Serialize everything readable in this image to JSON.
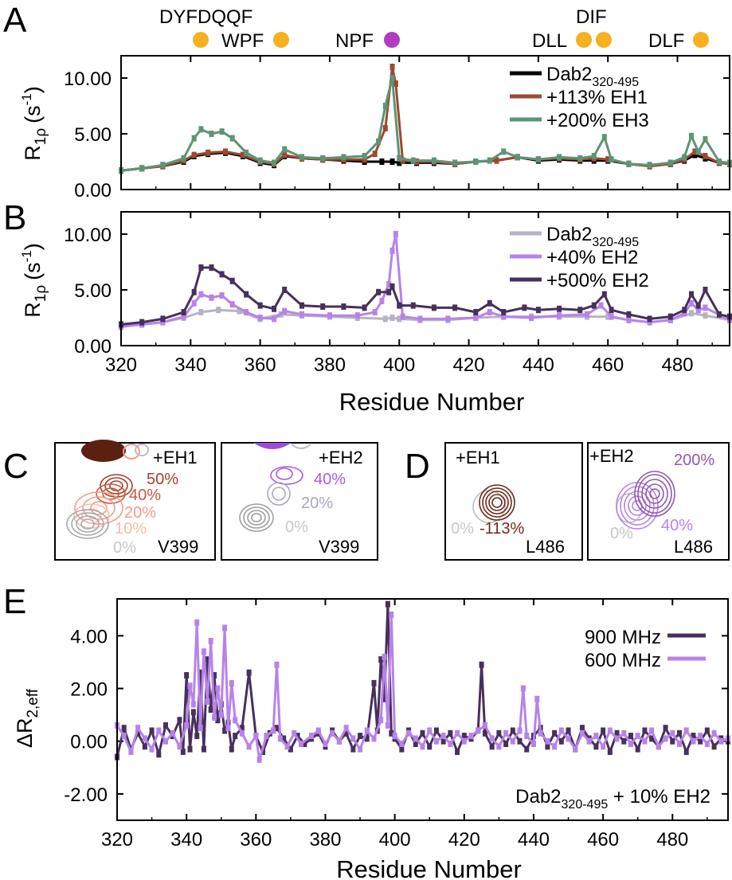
{
  "panels": {
    "A": {
      "letter": "A"
    },
    "B": {
      "letter": "B"
    },
    "C": {
      "letter": "C"
    },
    "D": {
      "letter": "D"
    },
    "E": {
      "letter": "E"
    }
  },
  "motifs": {
    "labels": [
      "DYFDQQF",
      "WPF",
      "NPF",
      "DLL",
      "DIF",
      "DLF"
    ],
    "colors": {
      "orange": "#F7B11F",
      "purple": "#B03CC0"
    }
  },
  "common": {
    "xlabel": "Residue Number",
    "xticks": [
      "320",
      "340",
      "360",
      "380",
      "400",
      "420",
      "440",
      "460",
      "480"
    ]
  },
  "ylabels": {
    "rho": {
      "main": "R",
      "sub": "1ρ",
      "unit": "(s",
      "exp": "-1",
      "close": ")"
    },
    "dr": {
      "main": "ΔR",
      "sub": "2,eff"
    }
  },
  "construct": {
    "name": "Dab2",
    "range": "320-495"
  },
  "chart_data": [
    {
      "panel": "A",
      "type": "line",
      "xlabel": "Residue Number",
      "ylabel": "R1ρ (s-1)",
      "xlim": [
        320,
        495
      ],
      "ylim": [
        0,
        12
      ],
      "yticks": [
        "0.00",
        "5.00",
        "10.00"
      ],
      "series": [
        {
          "name": "Dab2 320-495",
          "legend_suffix": "",
          "color": "#000000",
          "x": [
            320,
            326,
            332,
            338,
            341,
            345,
            350,
            355,
            360,
            364,
            367,
            372,
            378,
            384,
            390,
            395,
            398,
            400,
            405,
            410,
            416,
            422,
            428,
            434,
            440,
            446,
            452,
            456,
            460,
            466,
            472,
            478,
            482,
            485,
            488,
            492,
            495
          ],
          "y": [
            1.7,
            1.9,
            2.1,
            2.5,
            3.0,
            3.2,
            3.3,
            3.0,
            2.4,
            2.2,
            3.0,
            2.8,
            2.7,
            2.6,
            2.5,
            2.5,
            2.5,
            2.4,
            2.4,
            2.4,
            2.3,
            2.5,
            2.6,
            2.9,
            2.6,
            2.7,
            2.6,
            2.6,
            2.6,
            2.3,
            2.1,
            2.3,
            2.6,
            3.1,
            2.8,
            2.4,
            2.3
          ]
        },
        {
          "name": "+113% EH1",
          "legend_suffix": "",
          "color": "#9A4A33",
          "x": [
            320,
            326,
            332,
            338,
            341,
            345,
            350,
            355,
            360,
            364,
            367,
            372,
            378,
            384,
            390,
            393,
            396,
            398,
            399,
            401,
            405,
            410,
            416,
            422,
            428,
            434,
            440,
            446,
            452,
            456,
            460,
            466,
            472,
            478,
            482,
            485,
            488,
            492,
            495
          ],
          "y": [
            1.7,
            1.9,
            2.1,
            2.6,
            3.1,
            3.3,
            3.4,
            3.1,
            2.5,
            2.3,
            3.1,
            2.8,
            2.7,
            2.7,
            2.7,
            3.2,
            5.5,
            11.0,
            9.5,
            2.6,
            2.5,
            2.5,
            2.3,
            2.5,
            2.6,
            2.9,
            2.7,
            2.8,
            2.7,
            2.8,
            2.7,
            2.3,
            2.1,
            2.3,
            2.7,
            3.4,
            3.0,
            2.4,
            2.3
          ]
        },
        {
          "name": "+200% EH3",
          "legend_suffix": "",
          "color": "#5E9476",
          "x": [
            320,
            326,
            332,
            338,
            341,
            343,
            346,
            349,
            352,
            356,
            360,
            364,
            367,
            372,
            378,
            384,
            390,
            394,
            396,
            398,
            400,
            404,
            410,
            416,
            422,
            426,
            430,
            434,
            440,
            446,
            452,
            456,
            459,
            461,
            466,
            472,
            478,
            482,
            484,
            486,
            488,
            492,
            495
          ],
          "y": [
            1.7,
            1.9,
            2.2,
            2.8,
            4.6,
            5.4,
            5.0,
            5.2,
            4.6,
            3.3,
            2.6,
            2.4,
            3.6,
            2.9,
            2.8,
            2.9,
            3.0,
            4.3,
            7.5,
            10.0,
            2.8,
            2.6,
            2.6,
            2.4,
            2.5,
            2.6,
            3.4,
            2.9,
            2.7,
            2.9,
            2.8,
            3.0,
            4.7,
            2.7,
            2.3,
            2.2,
            2.4,
            2.9,
            4.8,
            3.4,
            4.5,
            2.5,
            2.4
          ]
        }
      ]
    },
    {
      "panel": "B",
      "type": "line",
      "xlabel": "Residue Number",
      "ylabel": "R1ρ (s-1)",
      "xlim": [
        320,
        495
      ],
      "ylim": [
        0,
        12
      ],
      "yticks": [
        "0.00",
        "5.00",
        "10.00"
      ],
      "series": [
        {
          "name": "Dab2 320-495",
          "legend_suffix": "",
          "color": "#B7B3C4",
          "x": [
            320,
            326,
            332,
            338,
            343,
            348,
            354,
            360,
            366,
            372,
            380,
            388,
            396,
            398,
            400,
            406,
            414,
            422,
            430,
            438,
            446,
            454,
            460,
            466,
            472,
            478,
            484,
            488,
            495
          ],
          "y": [
            1.7,
            1.9,
            2.1,
            2.5,
            3.0,
            3.2,
            3.1,
            2.4,
            2.8,
            2.7,
            2.6,
            2.5,
            2.4,
            2.5,
            2.4,
            2.3,
            2.3,
            2.5,
            2.6,
            2.6,
            2.6,
            2.6,
            2.6,
            2.3,
            2.1,
            2.3,
            2.9,
            2.7,
            2.3
          ]
        },
        {
          "name": "+40% EH2",
          "legend_suffix": "",
          "color": "#B783E8",
          "x": [
            320,
            326,
            332,
            338,
            341,
            343,
            346,
            349,
            352,
            356,
            360,
            364,
            367,
            372,
            380,
            388,
            393,
            395,
            397,
            398,
            399,
            401,
            406,
            414,
            422,
            426,
            430,
            438,
            446,
            454,
            458,
            461,
            466,
            472,
            478,
            482,
            484,
            486,
            488,
            495
          ],
          "y": [
            1.7,
            1.9,
            2.1,
            2.6,
            3.8,
            4.6,
            4.3,
            4.5,
            3.7,
            3.0,
            2.5,
            2.4,
            3.1,
            2.8,
            2.7,
            2.7,
            3.0,
            4.0,
            5.5,
            8.5,
            10.0,
            2.6,
            2.4,
            2.4,
            2.5,
            3.0,
            2.6,
            2.5,
            2.7,
            2.8,
            3.6,
            2.6,
            2.3,
            2.1,
            2.3,
            2.9,
            3.8,
            3.2,
            3.4,
            2.3
          ]
        },
        {
          "name": "+500% EH2",
          "legend_suffix": "",
          "color": "#47305C",
          "x": [
            320,
            326,
            332,
            338,
            341,
            343,
            346,
            349,
            352,
            356,
            360,
            364,
            367,
            372,
            378,
            384,
            390,
            394,
            397,
            398,
            400,
            404,
            410,
            416,
            422,
            426,
            430,
            436,
            440,
            446,
            452,
            456,
            459,
            461,
            466,
            472,
            478,
            482,
            484,
            486,
            488,
            492,
            495
          ],
          "y": [
            1.9,
            2.1,
            2.4,
            3.0,
            4.8,
            7.0,
            7.0,
            6.4,
            5.8,
            4.6,
            3.6,
            3.3,
            5.0,
            3.6,
            3.5,
            3.5,
            3.4,
            4.8,
            4.8,
            5.3,
            3.6,
            3.6,
            3.4,
            3.4,
            3.0,
            3.8,
            3.0,
            3.4,
            3.2,
            3.3,
            3.2,
            3.6,
            4.6,
            3.2,
            2.8,
            2.4,
            2.6,
            3.2,
            4.6,
            3.6,
            5.0,
            2.8,
            2.6
          ]
        }
      ]
    },
    {
      "panel": "E",
      "type": "line",
      "xlabel": "Residue Number",
      "ylabel": "ΔR2,eff",
      "annotation": {
        "prefix": "Dab2",
        "sub": "320-495",
        "suffix": " + 10% EH2"
      },
      "xlim": [
        320,
        496
      ],
      "ylim": [
        -3,
        5.4
      ],
      "yticks": [
        "-2.00",
        "0.00",
        "2.00",
        "4.00"
      ],
      "series": [
        {
          "name": "900 MHz",
          "color": "#47305C",
          "x": [
            320,
            322,
            324,
            326,
            328,
            330,
            332,
            334,
            336,
            338,
            339,
            340,
            341,
            342,
            343,
            344,
            345,
            346,
            347,
            348,
            349,
            350,
            351,
            352,
            353,
            354,
            356,
            358,
            360,
            362,
            364,
            366,
            368,
            370,
            372,
            374,
            376,
            378,
            380,
            382,
            384,
            386,
            388,
            390,
            392,
            394,
            395,
            396,
            397,
            398,
            399,
            400,
            402,
            404,
            406,
            408,
            410,
            412,
            414,
            416,
            418,
            420,
            422,
            424,
            425,
            426,
            428,
            430,
            432,
            434,
            436,
            438,
            440,
            442,
            444,
            446,
            448,
            450,
            452,
            454,
            456,
            458,
            460,
            462,
            464,
            466,
            468,
            470,
            472,
            474,
            476,
            478,
            480,
            482,
            484,
            486,
            488,
            490,
            492,
            494,
            496
          ],
          "y": [
            -0.6,
            0.5,
            -0.3,
            0.3,
            -0.2,
            0.4,
            -0.5,
            0.6,
            0.2,
            0.8,
            -0.4,
            2.5,
            -0.3,
            1.1,
            0.2,
            2.6,
            -0.3,
            3.1,
            1.2,
            2.5,
            0.8,
            1.4,
            0.4,
            0.7,
            -0.3,
            0.2,
            0.5,
            2.6,
            0.2,
            -0.4,
            0.3,
            0.5,
            0.1,
            -0.3,
            0.2,
            -0.1,
            0.1,
            0.3,
            -0.2,
            0.4,
            0.0,
            0.3,
            -0.3,
            0.2,
            0.1,
            2.2,
            0.4,
            3.1,
            1.6,
            5.2,
            0.3,
            0.1,
            -0.3,
            0.4,
            -0.1,
            0.3,
            -0.2,
            0.4,
            0.0,
            0.3,
            -0.4,
            0.2,
            0.1,
            0.4,
            2.9,
            0.3,
            -0.2,
            0.3,
            -0.1,
            0.4,
            0.0,
            -0.3,
            0.2,
            0.5,
            -0.2,
            0.3,
            0.0,
            0.4,
            -0.3,
            0.5,
            0.1,
            -0.2,
            0.4,
            -0.4,
            0.3,
            0.0,
            0.2,
            -0.3,
            0.4,
            0.1,
            -0.2,
            0.5,
            0.0,
            0.3,
            -0.4,
            0.2,
            0.0,
            0.4,
            -0.2,
            0.1,
            0.0
          ]
        },
        {
          "name": "600 MHz",
          "color": "#B783E8",
          "x": [
            320,
            322,
            324,
            326,
            328,
            330,
            332,
            334,
            336,
            338,
            340,
            341,
            342,
            343,
            344,
            345,
            346,
            347,
            348,
            349,
            350,
            351,
            352,
            353,
            354,
            356,
            358,
            360,
            361,
            363,
            365,
            366,
            367,
            369,
            371,
            373,
            376,
            378,
            380,
            382,
            384,
            386,
            388,
            390,
            392,
            394,
            396,
            397,
            398,
            399,
            400,
            402,
            404,
            406,
            408,
            410,
            412,
            414,
            416,
            418,
            420,
            422,
            424,
            426,
            428,
            430,
            432,
            434,
            436,
            437,
            438,
            440,
            441,
            442,
            444,
            446,
            448,
            450,
            452,
            454,
            456,
            458,
            460,
            462,
            464,
            466,
            468,
            470,
            472,
            474,
            476,
            478,
            480,
            482,
            484,
            486,
            488,
            490,
            492,
            494,
            496
          ],
          "y": [
            0.6,
            0.2,
            -0.4,
            0.5,
            0.1,
            -0.3,
            0.4,
            0.0,
            0.3,
            -0.2,
            0.6,
            2.1,
            1.4,
            4.5,
            0.5,
            3.4,
            1.5,
            3.8,
            0.9,
            2.0,
            1.0,
            4.3,
            0.5,
            2.2,
            0.8,
            0.3,
            -0.2,
            0.2,
            -0.7,
            0.2,
            0.4,
            2.9,
            0.1,
            -0.2,
            0.3,
            -0.1,
            0.2,
            0.4,
            -0.1,
            0.3,
            0.0,
            0.5,
            0.1,
            -0.3,
            0.4,
            0.1,
            0.8,
            3.2,
            0.6,
            4.8,
            0.2,
            -0.1,
            0.3,
            0.1,
            -0.2,
            0.4,
            0.0,
            0.2,
            -0.1,
            0.3,
            0.0,
            0.2,
            0.4,
            0.6,
            0.1,
            -0.2,
            0.3,
            0.0,
            0.4,
            2.0,
            0.2,
            -0.1,
            1.6,
            0.3,
            0.0,
            -0.2,
            0.4,
            0.1,
            -0.3,
            0.3,
            0.0,
            0.2,
            -0.2,
            0.4,
            0.1,
            0.3,
            -0.1,
            0.2,
            0.0,
            0.4,
            -0.2,
            0.1,
            0.3,
            -0.1,
            0.4,
            0.0,
            0.2,
            -0.1,
            0.3,
            0.0,
            0.1
          ]
        }
      ]
    }
  ],
  "spectra": {
    "C1": {
      "tag": "+EH1",
      "residue": "V399",
      "levels": [
        "50%",
        "40%",
        "20%",
        "10%",
        "0%"
      ],
      "colors": [
        "#A6402A",
        "#C85840",
        "#F29B86",
        "#F7BCAA",
        "#BEBEBE"
      ]
    },
    "C2": {
      "tag": "+EH2",
      "residue": "V399",
      "levels": [
        "40%",
        "20%",
        "0%"
      ],
      "colors": [
        "#A15FE0",
        "#A8A8BE",
        "#BEBEBE"
      ]
    },
    "D1": {
      "tag": "+EH1",
      "residue": "L486",
      "levels": [
        "0%",
        "-113%"
      ],
      "colors": [
        "#BEBEBE",
        "#6E2A1A"
      ]
    },
    "D2": {
      "tag": "+EH2",
      "residue": "L486",
      "levels": [
        "200%",
        "40%",
        "0%"
      ],
      "colors": [
        "#8D5AAE",
        "#B783E8",
        "#BEBEBE"
      ]
    }
  }
}
